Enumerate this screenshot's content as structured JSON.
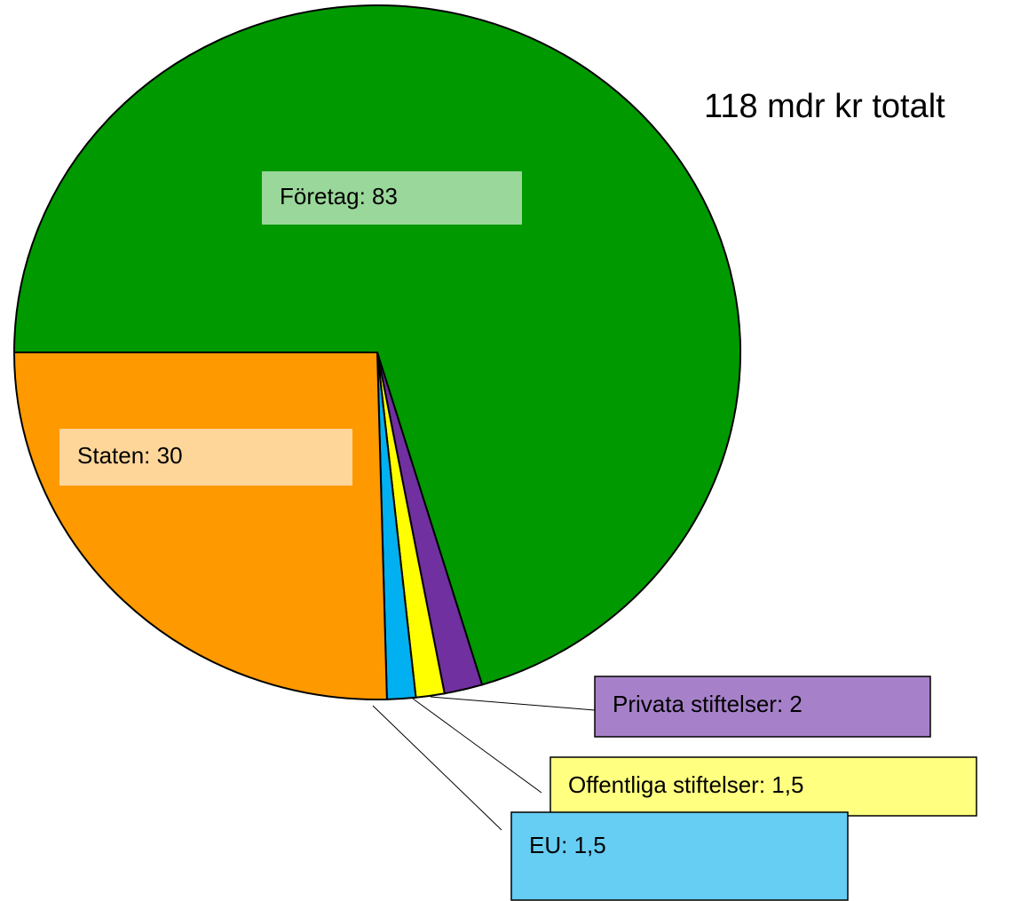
{
  "chart_data": {
    "type": "pie",
    "annotation": "118 mdr kr totalt",
    "values": [
      83,
      2,
      1.5,
      1.5,
      30
    ],
    "value_labels": [
      "Företag: 83",
      "Privata stiftelser: 2",
      "Offentliga stiftelser: 1,5",
      "EU: 1,5",
      "Staten: 30"
    ],
    "colors": [
      "#009900",
      "#7030a0",
      "#ffff00",
      "#00b0f0",
      "#ff9900"
    ]
  }
}
